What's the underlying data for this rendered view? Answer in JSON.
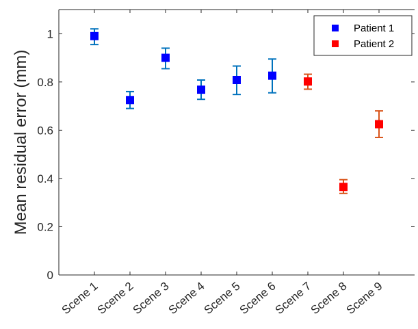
{
  "chart_data": {
    "type": "scatter",
    "categories": [
      "Scene 1",
      "Scene 2",
      "Scene 3",
      "Scene 4",
      "Scene 5",
      "Scene 6",
      "Scene 7",
      "Scene 8",
      "Scene 9"
    ],
    "ylabel": "Mean residual error (mm)",
    "xlabel": "",
    "title": "",
    "ylim": [
      0,
      1.1
    ],
    "yticks": [
      0,
      0.2,
      0.4,
      0.6,
      0.8,
      1
    ],
    "ytick_labels": [
      "0",
      "0.2",
      "0.4",
      "0.6",
      "0.8",
      "1"
    ],
    "grid": false,
    "legend_position": "top-right",
    "series": [
      {
        "name": "Patient 1",
        "color": "#0000ff",
        "errorbar_color": "#0072bd",
        "points": [
          {
            "category": "Scene 1",
            "y": 0.99,
            "err_low": 0.955,
            "err_high": 1.02
          },
          {
            "category": "Scene 2",
            "y": 0.725,
            "err_low": 0.69,
            "err_high": 0.76
          },
          {
            "category": "Scene 3",
            "y": 0.9,
            "err_low": 0.855,
            "err_high": 0.94
          },
          {
            "category": "Scene 4",
            "y": 0.768,
            "err_low": 0.728,
            "err_high": 0.808
          },
          {
            "category": "Scene 5",
            "y": 0.808,
            "err_low": 0.748,
            "err_high": 0.866
          },
          {
            "category": "Scene 6",
            "y": 0.826,
            "err_low": 0.755,
            "err_high": 0.895
          }
        ]
      },
      {
        "name": "Patient 2",
        "color": "#ff0000",
        "errorbar_color": "#d95319",
        "points": [
          {
            "category": "Scene 7",
            "y": 0.802,
            "err_low": 0.77,
            "err_high": 0.832
          },
          {
            "category": "Scene 8",
            "y": 0.365,
            "err_low": 0.338,
            "err_high": 0.395
          },
          {
            "category": "Scene 9",
            "y": 0.625,
            "err_low": 0.57,
            "err_high": 0.68
          }
        ]
      }
    ]
  }
}
